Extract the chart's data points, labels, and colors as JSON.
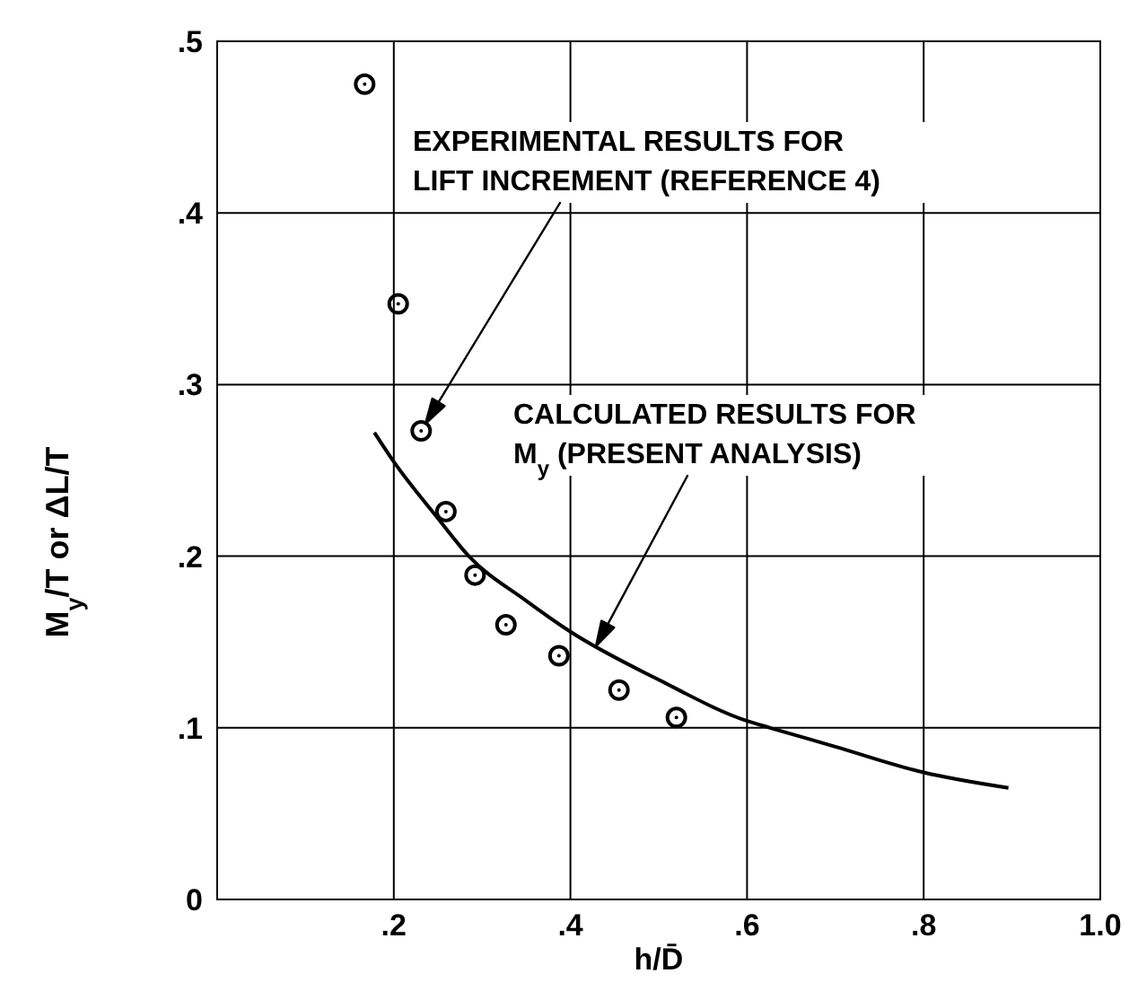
{
  "chart_data": {
    "type": "scatter",
    "xlabel": "h/D̄",
    "ylabel": "M$_{y}$/T or ΔL/T",
    "xlim": [
      0,
      1
    ],
    "ylim": [
      0,
      0.5
    ],
    "xticks": [
      {
        "value": 0.2,
        "label": ".2"
      },
      {
        "value": 0.4,
        "label": ".4"
      },
      {
        "value": 0.6,
        "label": ".6"
      },
      {
        "value": 0.8,
        "label": ".8"
      },
      {
        "value": 1,
        "label": "1.0"
      }
    ],
    "yticks": [
      {
        "value": 0,
        "label": "0"
      },
      {
        "value": 0.1,
        "label": ".1"
      },
      {
        "value": 0.2,
        "label": ".2"
      },
      {
        "value": 0.3,
        "label": ".3"
      },
      {
        "value": 0.4,
        "label": ".4"
      },
      {
        "value": 0.5,
        "label": ".5"
      }
    ],
    "grid": true,
    "legend": false,
    "marker": "circle",
    "series": [
      {
        "color": "#000000",
        "x": [
          0.167,
          0.205,
          0.231,
          0.259,
          0.292,
          0.327,
          0.387,
          0.455,
          0.52
        ],
        "values": [
          0.475,
          0.347,
          0.273,
          0.226,
          0.189,
          0.16,
          0.142,
          0.122,
          0.106
        ]
      },
      {
        "type": "line",
        "color": "#000000",
        "marker": "none",
        "x": [
          0.178,
          0.2,
          0.25,
          0.285,
          0.35,
          0.4,
          0.5,
          0.6,
          0.626,
          0.7,
          0.8,
          0.896
        ],
        "values": [
          0.272,
          0.255,
          0.222,
          0.2,
          0.174,
          0.156,
          0.128,
          0.104,
          0.1,
          0.089,
          0.074,
          0.065
        ]
      }
    ],
    "annotations": [
      "EXPERIMENTAL RESULTS FOR\nLIFT INCREMENT (REFERENCE 4)",
      "CALCULATED RESULTS FOR\nM$_{y}$ (PRESENT ANALYSIS)"
    ]
  }
}
